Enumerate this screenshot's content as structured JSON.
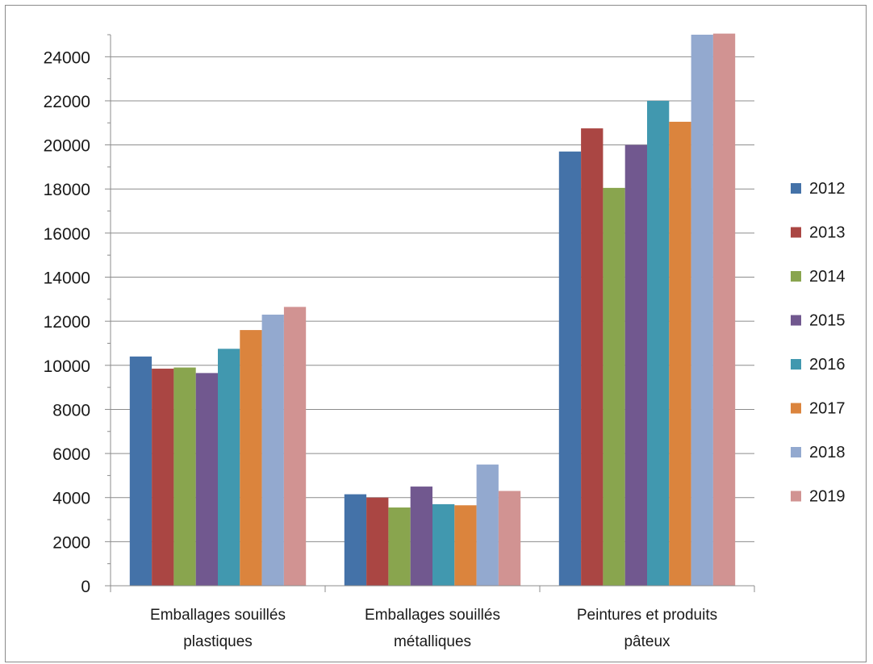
{
  "chart_data": {
    "type": "bar",
    "title": "",
    "xlabel": "",
    "ylabel": "",
    "ylim": [
      0,
      25000
    ],
    "yticks": [
      "0",
      "2000",
      "4000",
      "6000",
      "8000",
      "10000",
      "12000",
      "14000",
      "16000",
      "18000",
      "20000",
      "22000",
      "24000"
    ],
    "grid": true,
    "legend": "right",
    "categories": [
      [
        "Emballages souillés",
        "plastiques"
      ],
      [
        "Emballages souillés",
        "métalliques"
      ],
      [
        "Peintures et produits",
        "pâteux"
      ]
    ],
    "series": [
      {
        "name": "2012",
        "color": "#4472a8",
        "values": [
          10400,
          4150,
          19700
        ]
      },
      {
        "name": "2013",
        "color": "#aa4643",
        "values": [
          9850,
          4000,
          20750
        ]
      },
      {
        "name": "2014",
        "color": "#89a54e",
        "values": [
          9900,
          3550,
          18050
        ]
      },
      {
        "name": "2015",
        "color": "#71588f",
        "values": [
          9650,
          4500,
          20000
        ]
      },
      {
        "name": "2016",
        "color": "#4198af",
        "values": [
          10750,
          3700,
          22000
        ]
      },
      {
        "name": "2017",
        "color": "#db843d",
        "values": [
          11600,
          3650,
          21050
        ]
      },
      {
        "name": "2018",
        "color": "#93a9cf",
        "values": [
          12300,
          5500,
          25000
        ]
      },
      {
        "name": "2019",
        "color": "#d19392",
        "values": [
          12650,
          4300,
          25050
        ]
      }
    ]
  }
}
